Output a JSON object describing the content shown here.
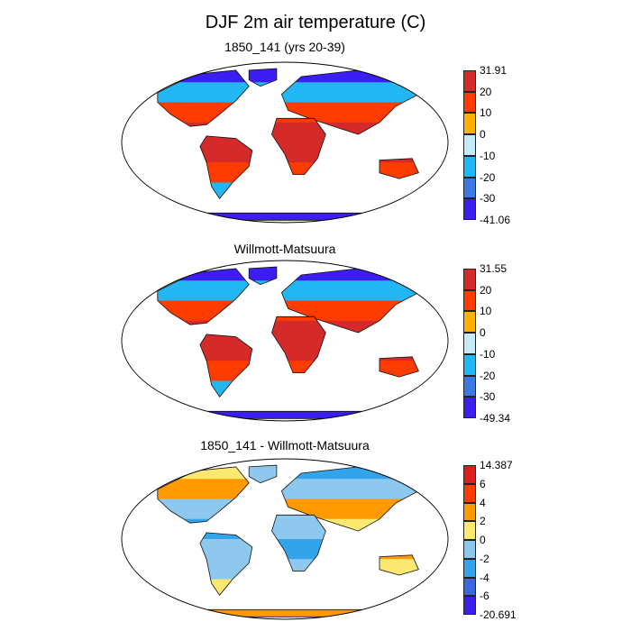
{
  "title": "DJF 2m air temperature (C)",
  "panels": [
    {
      "title": "1850_141 (yrs 20-39)",
      "colorbar": {
        "labels": [
          "31.91",
          "20",
          "10",
          "0",
          "-10",
          "-20",
          "-30",
          "-41.06"
        ],
        "colors": [
          "#d42a2a",
          "#ff3c00",
          "#ffb000",
          "#c8eaf8",
          "#22b6f2",
          "#3a7ae2",
          "#3d1ef2"
        ]
      }
    },
    {
      "title": "Willmott-Matsuura",
      "colorbar": {
        "labels": [
          "31.55",
          "20",
          "10",
          "0",
          "-10",
          "-20",
          "-30",
          "-49.34"
        ],
        "colors": [
          "#d42a2a",
          "#ff3c00",
          "#ffb000",
          "#c8eaf8",
          "#22b6f2",
          "#3a7ae2",
          "#3d1ef2"
        ]
      }
    },
    {
      "title": "1850_141 - Willmott-Matsuura",
      "colorbar": {
        "labels": [
          "14.387",
          "6",
          "4",
          "2",
          "0",
          "-2",
          "-4",
          "-6",
          "-20.691"
        ],
        "colors": [
          "#dc1e1e",
          "#ff3c00",
          "#ff9a00",
          "#fbe870",
          "#8ec8ef",
          "#34a4ea",
          "#3a68e0",
          "#3a1eea"
        ]
      }
    }
  ]
}
